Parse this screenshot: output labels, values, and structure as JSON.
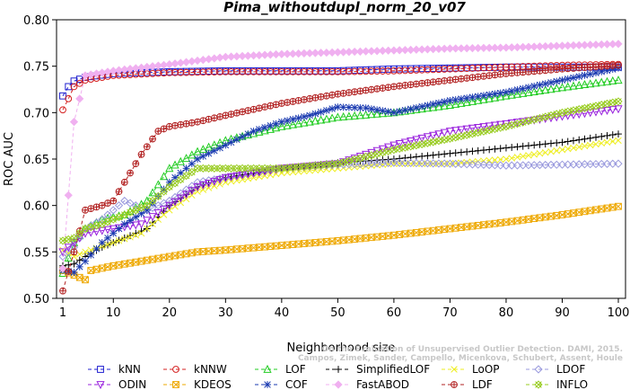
{
  "chart_data": {
    "type": "line",
    "title": "Pima_withoutdupl_norm_20_v07",
    "xlabel": "Neighborhood size",
    "ylabel": "ROC AUC",
    "xlim": [
      1,
      100
    ],
    "ylim": [
      0.5,
      0.8
    ],
    "x_ticks": [
      1,
      10,
      20,
      30,
      40,
      50,
      60,
      70,
      80,
      90,
      100
    ],
    "y_ticks": [
      0.5,
      0.55,
      0.6,
      0.65,
      0.7,
      0.75,
      0.8
    ],
    "y_tick_labels": [
      "0.50",
      "0.55",
      "0.60",
      "0.65",
      "0.70",
      "0.75",
      "0.80"
    ],
    "grid": false,
    "legend_position": "bottom",
    "watermark": [
      "Campos, Zimek, Sander, Campello, Micenkova, Schubert, Assent, Houle",
      "On the Evaluation of Unsupervised Outlier Detection. DAMI, 2015."
    ],
    "series": [
      {
        "name": "kNN",
        "color": "#1f1fcf",
        "marker": "square",
        "points": [
          [
            1,
            0.718
          ],
          [
            2,
            0.728
          ],
          [
            3,
            0.734
          ],
          [
            5,
            0.738
          ],
          [
            10,
            0.742
          ],
          [
            20,
            0.744
          ],
          [
            30,
            0.745
          ],
          [
            40,
            0.745
          ],
          [
            50,
            0.745
          ],
          [
            60,
            0.747
          ],
          [
            70,
            0.748
          ],
          [
            80,
            0.749
          ],
          [
            90,
            0.749
          ],
          [
            100,
            0.749
          ]
        ]
      },
      {
        "name": "kNNW",
        "color": "#d42020",
        "marker": "circle",
        "points": [
          [
            1,
            0.703
          ],
          [
            2,
            0.715
          ],
          [
            3,
            0.728
          ],
          [
            5,
            0.735
          ],
          [
            10,
            0.74
          ],
          [
            20,
            0.743
          ],
          [
            30,
            0.744
          ],
          [
            40,
            0.744
          ],
          [
            50,
            0.744
          ],
          [
            60,
            0.745
          ],
          [
            70,
            0.747
          ],
          [
            80,
            0.749
          ],
          [
            90,
            0.751
          ],
          [
            100,
            0.752
          ]
        ]
      },
      {
        "name": "LOF",
        "color": "#22cc22",
        "marker": "triangle-up",
        "points": [
          [
            1,
            0.527
          ],
          [
            3,
            0.56
          ],
          [
            5,
            0.575
          ],
          [
            8,
            0.585
          ],
          [
            12,
            0.59
          ],
          [
            16,
            0.605
          ],
          [
            20,
            0.64
          ],
          [
            25,
            0.658
          ],
          [
            30,
            0.67
          ],
          [
            40,
            0.685
          ],
          [
            50,
            0.695
          ],
          [
            60,
            0.7
          ],
          [
            70,
            0.708
          ],
          [
            80,
            0.718
          ],
          [
            90,
            0.727
          ],
          [
            100,
            0.735
          ]
        ]
      },
      {
        "name": "SimplifiedLOF",
        "color": "#000000",
        "marker": "plus",
        "points": [
          [
            1,
            0.535
          ],
          [
            3,
            0.537
          ],
          [
            5,
            0.545
          ],
          [
            8,
            0.555
          ],
          [
            12,
            0.565
          ],
          [
            16,
            0.575
          ],
          [
            20,
            0.6
          ],
          [
            25,
            0.62
          ],
          [
            30,
            0.63
          ],
          [
            40,
            0.64
          ],
          [
            50,
            0.646
          ],
          [
            60,
            0.65
          ],
          [
            70,
            0.656
          ],
          [
            80,
            0.662
          ],
          [
            90,
            0.668
          ],
          [
            100,
            0.677
          ]
        ]
      },
      {
        "name": "LoOP",
        "color": "#eeee22",
        "marker": "x",
        "points": [
          [
            1,
            0.552
          ],
          [
            3,
            0.545
          ],
          [
            5,
            0.55
          ],
          [
            10,
            0.56
          ],
          [
            15,
            0.57
          ],
          [
            20,
            0.595
          ],
          [
            25,
            0.615
          ],
          [
            30,
            0.625
          ],
          [
            40,
            0.635
          ],
          [
            50,
            0.64
          ],
          [
            60,
            0.645
          ],
          [
            70,
            0.645
          ],
          [
            80,
            0.65
          ],
          [
            90,
            0.66
          ],
          [
            100,
            0.67
          ]
        ]
      },
      {
        "name": "LDOF",
        "color": "#9999dd",
        "marker": "diamond",
        "points": [
          [
            1,
            0.545
          ],
          [
            3,
            0.555
          ],
          [
            5,
            0.575
          ],
          [
            8,
            0.585
          ],
          [
            12,
            0.605
          ],
          [
            16,
            0.595
          ],
          [
            20,
            0.605
          ],
          [
            25,
            0.625
          ],
          [
            30,
            0.63
          ],
          [
            40,
            0.64
          ],
          [
            50,
            0.644
          ],
          [
            60,
            0.646
          ],
          [
            70,
            0.645
          ],
          [
            80,
            0.643
          ],
          [
            90,
            0.644
          ],
          [
            100,
            0.645
          ]
        ]
      },
      {
        "name": "ODIN",
        "color": "#9922dd",
        "marker": "triangle-down",
        "points": [
          [
            1,
            0.55
          ],
          [
            3,
            0.56
          ],
          [
            5,
            0.57
          ],
          [
            10,
            0.575
          ],
          [
            15,
            0.58
          ],
          [
            20,
            0.6
          ],
          [
            25,
            0.62
          ],
          [
            30,
            0.63
          ],
          [
            40,
            0.64
          ],
          [
            50,
            0.645
          ],
          [
            60,
            0.665
          ],
          [
            70,
            0.68
          ],
          [
            80,
            0.688
          ],
          [
            90,
            0.696
          ],
          [
            100,
            0.704
          ]
        ]
      },
      {
        "name": "KDEOS",
        "color": "#eea800",
        "marker": "square-x",
        "points": [
          [
            1,
            0.53
          ],
          [
            3,
            0.525
          ],
          [
            5,
            0.52
          ],
          [
            6,
            0.53
          ],
          [
            10,
            0.535
          ],
          [
            15,
            0.54
          ],
          [
            20,
            0.545
          ],
          [
            25,
            0.55
          ],
          [
            30,
            0.552
          ],
          [
            40,
            0.557
          ],
          [
            50,
            0.562
          ],
          [
            60,
            0.568
          ],
          [
            70,
            0.575
          ],
          [
            80,
            0.582
          ],
          [
            90,
            0.59
          ],
          [
            100,
            0.599
          ]
        ]
      },
      {
        "name": "COF",
        "color": "#1a3ab0",
        "marker": "asterisk",
        "points": [
          [
            1,
            0.53
          ],
          [
            3,
            0.528
          ],
          [
            5,
            0.54
          ],
          [
            8,
            0.56
          ],
          [
            12,
            0.58
          ],
          [
            16,
            0.595
          ],
          [
            20,
            0.625
          ],
          [
            25,
            0.65
          ],
          [
            30,
            0.665
          ],
          [
            35,
            0.68
          ],
          [
            40,
            0.69
          ],
          [
            45,
            0.697
          ],
          [
            50,
            0.706
          ],
          [
            55,
            0.705
          ],
          [
            60,
            0.7
          ],
          [
            70,
            0.713
          ],
          [
            80,
            0.722
          ],
          [
            90,
            0.735
          ],
          [
            100,
            0.748
          ]
        ]
      },
      {
        "name": "FastABOD",
        "color": "#f0b0f0",
        "marker": "diamond-filled",
        "points": [
          [
            1,
            0.532
          ],
          [
            3,
            0.69
          ],
          [
            5,
            0.74
          ],
          [
            10,
            0.745
          ],
          [
            20,
            0.752
          ],
          [
            30,
            0.76
          ],
          [
            40,
            0.763
          ],
          [
            50,
            0.765
          ],
          [
            60,
            0.767
          ],
          [
            70,
            0.769
          ],
          [
            80,
            0.77
          ],
          [
            90,
            0.772
          ],
          [
            100,
            0.774
          ]
        ]
      },
      {
        "name": "LDF",
        "color": "#b22222",
        "marker": "circle-plus",
        "points": [
          [
            1,
            0.508
          ],
          [
            3,
            0.55
          ],
          [
            5,
            0.595
          ],
          [
            8,
            0.6
          ],
          [
            10,
            0.605
          ],
          [
            12,
            0.625
          ],
          [
            15,
            0.655
          ],
          [
            18,
            0.68
          ],
          [
            20,
            0.685
          ],
          [
            25,
            0.69
          ],
          [
            30,
            0.697
          ],
          [
            40,
            0.71
          ],
          [
            50,
            0.72
          ],
          [
            60,
            0.728
          ],
          [
            70,
            0.735
          ],
          [
            80,
            0.742
          ],
          [
            90,
            0.747
          ],
          [
            100,
            0.751
          ]
        ]
      },
      {
        "name": "INFLO",
        "color": "#99cc22",
        "marker": "box-x",
        "points": [
          [
            1,
            0.562
          ],
          [
            3,
            0.565
          ],
          [
            5,
            0.575
          ],
          [
            8,
            0.58
          ],
          [
            12,
            0.59
          ],
          [
            16,
            0.6
          ],
          [
            20,
            0.62
          ],
          [
            25,
            0.64
          ],
          [
            30,
            0.64
          ],
          [
            40,
            0.64
          ],
          [
            50,
            0.645
          ],
          [
            60,
            0.66
          ],
          [
            70,
            0.672
          ],
          [
            80,
            0.685
          ],
          [
            90,
            0.7
          ],
          [
            100,
            0.712
          ]
        ]
      }
    ]
  }
}
